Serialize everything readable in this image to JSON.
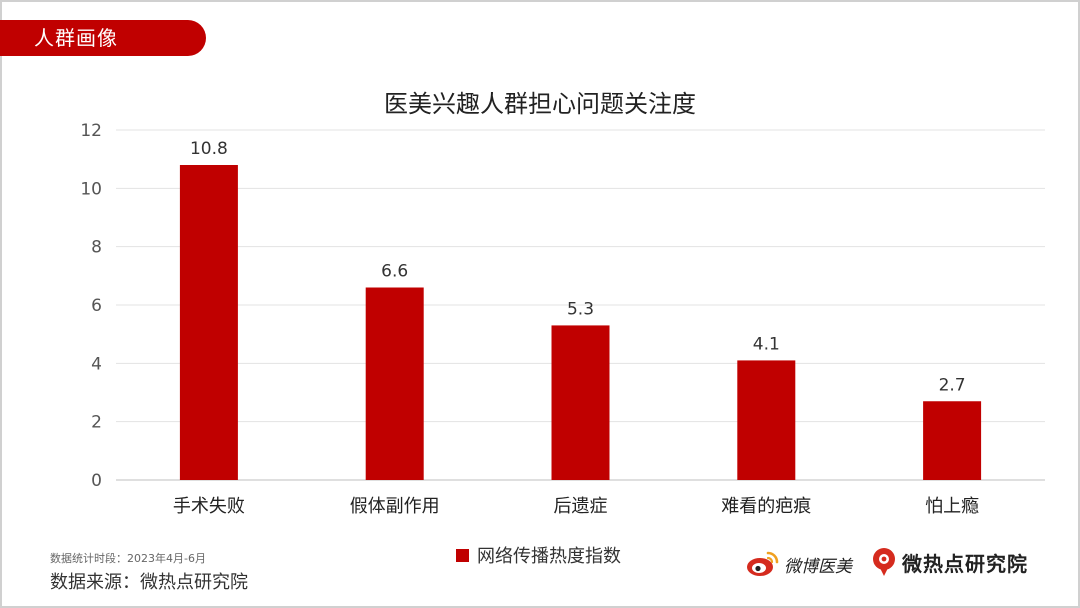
{
  "section_tab": "人群画像",
  "footnote": "数据统计时段：2023年4月-6月",
  "source": "数据来源：微热点研究院",
  "brands": {
    "weibo": "微博医美",
    "research": "微热点研究院"
  },
  "colors": {
    "accent": "#c00000",
    "bar": "#c00000"
  },
  "chart_data": {
    "type": "bar",
    "title": "医美兴趣人群担心问题关注度",
    "categories": [
      "手术失败",
      "假体副作用",
      "后遗症",
      "难看的疤痕",
      "怕上瘾"
    ],
    "series": [
      {
        "name": "网络传播热度指数",
        "values": [
          10.8,
          6.6,
          5.3,
          4.1,
          2.7
        ]
      }
    ],
    "data_labels": [
      "10.8",
      "6.6",
      "5.3",
      "4.1",
      "2.7"
    ],
    "ylim": [
      0,
      12
    ],
    "yticks": [
      0,
      2,
      4,
      6,
      8,
      10,
      12
    ],
    "grid": true,
    "legend_position": "bottom"
  }
}
